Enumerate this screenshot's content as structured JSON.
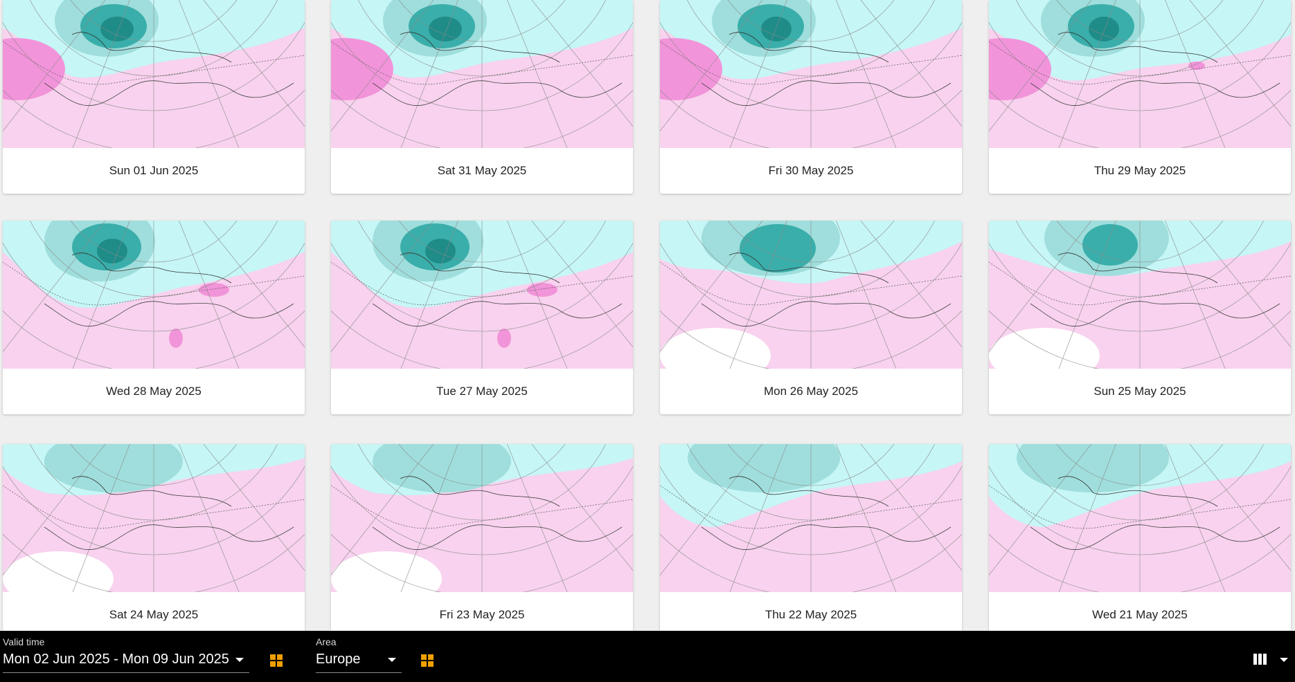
{
  "cards": [
    {
      "date": "Sun 01 Jun 2025",
      "pat": 0
    },
    {
      "date": "Sat 31 May 2025",
      "pat": 0
    },
    {
      "date": "Fri 30 May 2025",
      "pat": 1
    },
    {
      "date": "Thu 29 May 2025",
      "pat": 2
    },
    {
      "date": "Wed 28 May 2025",
      "pat": 3
    },
    {
      "date": "Tue 27 May 2025",
      "pat": 3
    },
    {
      "date": "Mon 26 May 2025",
      "pat": 4
    },
    {
      "date": "Sun 25 May 2025",
      "pat": 5
    },
    {
      "date": "Sat 24 May 2025",
      "pat": 6
    },
    {
      "date": "Fri 23 May 2025",
      "pat": 6
    },
    {
      "date": "Thu 22 May 2025",
      "pat": 7
    },
    {
      "date": "Wed 21 May 2025",
      "pat": 7
    }
  ],
  "bottombar": {
    "valid_time": {
      "label": "Valid time",
      "value": "Mon 02 Jun 2025 - Mon 09 Jun 2025"
    },
    "area": {
      "label": "Area",
      "value": "Europe"
    }
  },
  "icons": {
    "grid_view_1": "grid-view-icon",
    "grid_view_2": "grid-view-icon",
    "column_layout": "columns-icon",
    "dropdown": "chevron-down-icon"
  },
  "colors": {
    "pink_light": "#f8d2ee",
    "pink_mid": "#f294da",
    "cyan_light": "#c6f6f6",
    "teal_mid": "#9fdedc",
    "teal_dark": "#3aaeaa",
    "teal_darkest": "#1f8c88",
    "accent_orange": "#f0a000",
    "bar_bg": "#000000"
  }
}
